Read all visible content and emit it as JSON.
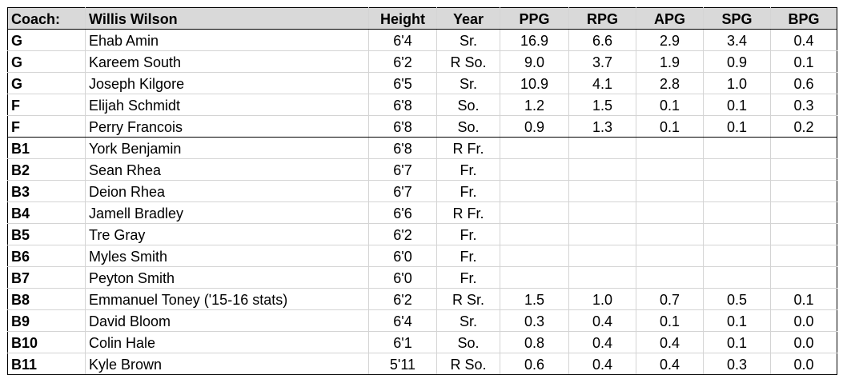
{
  "header": {
    "label": "Coach:",
    "coach": "Willis Wilson",
    "columns": [
      "Height",
      "Year",
      "PPG",
      "RPG",
      "APG",
      "SPG",
      "BPG"
    ]
  },
  "rows": [
    {
      "pos": "G",
      "name": "Ehab Amin",
      "height": "6'4",
      "year": "Sr.",
      "ppg": "16.9",
      "rpg": "6.6",
      "apg": "2.9",
      "spg": "3.4",
      "bpg": "0.4"
    },
    {
      "pos": "G",
      "name": "Kareem South",
      "height": "6'2",
      "year": "R So.",
      "ppg": "9.0",
      "rpg": "3.7",
      "apg": "1.9",
      "spg": "0.9",
      "bpg": "0.1"
    },
    {
      "pos": "G",
      "name": "Joseph Kilgore",
      "height": "6'5",
      "year": "Sr.",
      "ppg": "10.9",
      "rpg": "4.1",
      "apg": "2.8",
      "spg": "1.0",
      "bpg": "0.6"
    },
    {
      "pos": "F",
      "name": "Elijah Schmidt",
      "height": "6'8",
      "year": "So.",
      "ppg": "1.2",
      "rpg": "1.5",
      "apg": "0.1",
      "spg": "0.1",
      "bpg": "0.3"
    },
    {
      "pos": "F",
      "name": "Perry Francois",
      "height": "6'8",
      "year": "So.",
      "ppg": "0.9",
      "rpg": "1.3",
      "apg": "0.1",
      "spg": "0.1",
      "bpg": "0.2"
    },
    {
      "pos": "B1",
      "name": "York Benjamin",
      "height": "6'8",
      "year": "R Fr.",
      "ppg": "",
      "rpg": "",
      "apg": "",
      "spg": "",
      "bpg": ""
    },
    {
      "pos": "B2",
      "name": "Sean Rhea",
      "height": "6'7",
      "year": "Fr.",
      "ppg": "",
      "rpg": "",
      "apg": "",
      "spg": "",
      "bpg": ""
    },
    {
      "pos": "B3",
      "name": "Deion Rhea",
      "height": "6'7",
      "year": "Fr.",
      "ppg": "",
      "rpg": "",
      "apg": "",
      "spg": "",
      "bpg": ""
    },
    {
      "pos": "B4",
      "name": "Jamell Bradley",
      "height": "6'6",
      "year": "R Fr.",
      "ppg": "",
      "rpg": "",
      "apg": "",
      "spg": "",
      "bpg": ""
    },
    {
      "pos": "B5",
      "name": "Tre Gray",
      "height": "6'2",
      "year": "Fr.",
      "ppg": "",
      "rpg": "",
      "apg": "",
      "spg": "",
      "bpg": ""
    },
    {
      "pos": "B6",
      "name": "Myles Smith",
      "height": "6'0",
      "year": "Fr.",
      "ppg": "",
      "rpg": "",
      "apg": "",
      "spg": "",
      "bpg": ""
    },
    {
      "pos": "B7",
      "name": "Peyton Smith",
      "height": "6'0",
      "year": "Fr.",
      "ppg": "",
      "rpg": "",
      "apg": "",
      "spg": "",
      "bpg": ""
    },
    {
      "pos": "B8",
      "name": "Emmanuel Toney ('15-16 stats)",
      "height": "6'2",
      "year": "R Sr.",
      "ppg": "1.5",
      "rpg": "1.0",
      "apg": "0.7",
      "spg": "0.5",
      "bpg": "0.1"
    },
    {
      "pos": "B9",
      "name": "David Bloom",
      "height": "6'4",
      "year": "Sr.",
      "ppg": "0.3",
      "rpg": "0.4",
      "apg": "0.1",
      "spg": "0.1",
      "bpg": "0.0"
    },
    {
      "pos": "B10",
      "name": "Colin Hale",
      "height": "6'1",
      "year": "So.",
      "ppg": "0.8",
      "rpg": "0.4",
      "apg": "0.4",
      "spg": "0.1",
      "bpg": "0.0"
    },
    {
      "pos": "B11",
      "name": "Kyle Brown",
      "height": "5'11",
      "year": "R So.",
      "ppg": "0.6",
      "rpg": "0.4",
      "apg": "0.4",
      "spg": "0.3",
      "bpg": "0.0"
    }
  ]
}
